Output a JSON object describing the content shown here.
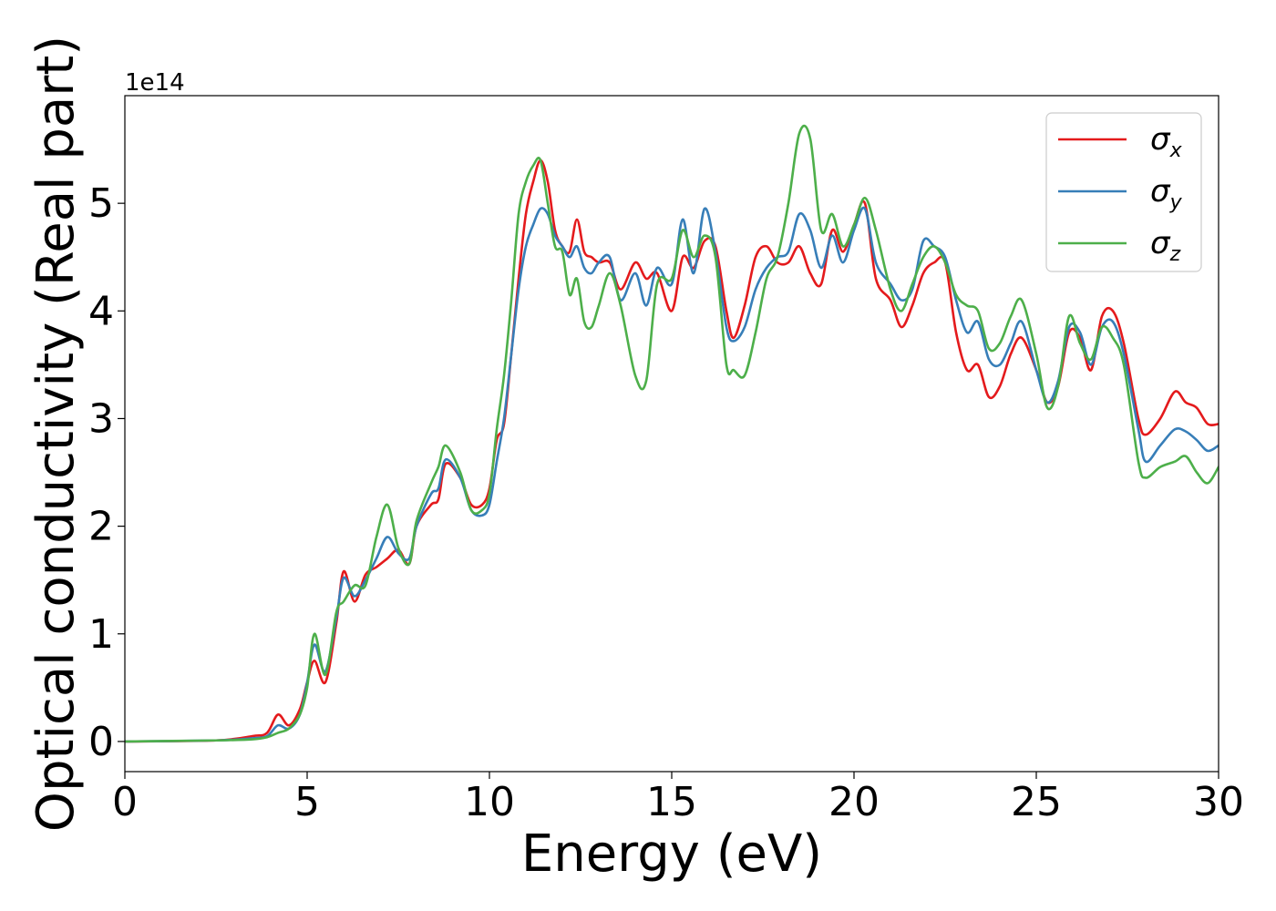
{
  "chart_data": {
    "type": "line",
    "xlabel": "Energy (eV)",
    "ylabel": "Optical conductivity (Real part)",
    "y_offset_label": "1e14",
    "xlim": [
      0,
      30
    ],
    "ylim": [
      -0.28,
      6.0
    ],
    "xticks": [
      0,
      5,
      10,
      15,
      20,
      25,
      30
    ],
    "yticks": [
      0,
      1,
      2,
      3,
      4,
      5
    ],
    "grid": false,
    "legend_position": "top-right",
    "colors": {
      "sigma_x": "#e41a1c",
      "sigma_y": "#377eb8",
      "sigma_z": "#4daf4a"
    },
    "legend": [
      {
        "key": "sigma_x",
        "symbol": "σ",
        "subscript": "x"
      },
      {
        "key": "sigma_y",
        "symbol": "σ",
        "subscript": "y"
      },
      {
        "key": "sigma_z",
        "symbol": "σ",
        "subscript": "z"
      }
    ],
    "series": [
      {
        "key": "sigma_x",
        "name": "σx",
        "points": [
          [
            0,
            0
          ],
          [
            2.5,
            0.01
          ],
          [
            3.5,
            0.05
          ],
          [
            3.9,
            0.08
          ],
          [
            4.2,
            0.25
          ],
          [
            4.5,
            0.15
          ],
          [
            4.8,
            0.3
          ],
          [
            5.0,
            0.55
          ],
          [
            5.2,
            0.75
          ],
          [
            5.5,
            0.55
          ],
          [
            5.8,
            1.1
          ],
          [
            6.0,
            1.58
          ],
          [
            6.3,
            1.3
          ],
          [
            6.6,
            1.55
          ],
          [
            6.9,
            1.62
          ],
          [
            7.2,
            1.7
          ],
          [
            7.5,
            1.78
          ],
          [
            7.8,
            1.65
          ],
          [
            8.0,
            2.0
          ],
          [
            8.4,
            2.2
          ],
          [
            8.6,
            2.25
          ],
          [
            8.8,
            2.58
          ],
          [
            9.2,
            2.45
          ],
          [
            9.5,
            2.2
          ],
          [
            9.8,
            2.2
          ],
          [
            10.0,
            2.35
          ],
          [
            10.2,
            2.8
          ],
          [
            10.4,
            2.95
          ],
          [
            10.6,
            3.6
          ],
          [
            10.8,
            4.3
          ],
          [
            11.0,
            4.9
          ],
          [
            11.2,
            5.2
          ],
          [
            11.4,
            5.4
          ],
          [
            11.6,
            5.2
          ],
          [
            11.8,
            4.75
          ],
          [
            12.0,
            4.6
          ],
          [
            12.2,
            4.55
          ],
          [
            12.4,
            4.85
          ],
          [
            12.6,
            4.55
          ],
          [
            12.8,
            4.5
          ],
          [
            13.0,
            4.45
          ],
          [
            13.3,
            4.45
          ],
          [
            13.6,
            4.2
          ],
          [
            14.0,
            4.45
          ],
          [
            14.3,
            4.3
          ],
          [
            14.6,
            4.35
          ],
          [
            15.0,
            4.0
          ],
          [
            15.3,
            4.5
          ],
          [
            15.6,
            4.4
          ],
          [
            15.9,
            4.65
          ],
          [
            16.2,
            4.6
          ],
          [
            16.5,
            4.0
          ],
          [
            16.7,
            3.75
          ],
          [
            17.0,
            4.05
          ],
          [
            17.3,
            4.5
          ],
          [
            17.6,
            4.6
          ],
          [
            17.9,
            4.45
          ],
          [
            18.2,
            4.45
          ],
          [
            18.5,
            4.6
          ],
          [
            18.8,
            4.35
          ],
          [
            19.1,
            4.25
          ],
          [
            19.4,
            4.75
          ],
          [
            19.7,
            4.55
          ],
          [
            20.0,
            4.8
          ],
          [
            20.3,
            5.0
          ],
          [
            20.6,
            4.3
          ],
          [
            21.0,
            4.1
          ],
          [
            21.3,
            3.85
          ],
          [
            21.6,
            4.05
          ],
          [
            21.9,
            4.35
          ],
          [
            22.2,
            4.45
          ],
          [
            22.5,
            4.45
          ],
          [
            22.8,
            3.8
          ],
          [
            23.1,
            3.45
          ],
          [
            23.4,
            3.5
          ],
          [
            23.7,
            3.2
          ],
          [
            24.0,
            3.3
          ],
          [
            24.3,
            3.6
          ],
          [
            24.6,
            3.75
          ],
          [
            25.0,
            3.45
          ],
          [
            25.3,
            3.15
          ],
          [
            25.6,
            3.3
          ],
          [
            25.9,
            3.8
          ],
          [
            26.2,
            3.75
          ],
          [
            26.5,
            3.45
          ],
          [
            26.8,
            3.95
          ],
          [
            27.1,
            4.0
          ],
          [
            27.4,
            3.7
          ],
          [
            27.8,
            3.0
          ],
          [
            28.0,
            2.85
          ],
          [
            28.4,
            3.0
          ],
          [
            28.8,
            3.25
          ],
          [
            29.1,
            3.15
          ],
          [
            29.4,
            3.1
          ],
          [
            29.7,
            2.95
          ],
          [
            30.0,
            2.95
          ]
        ]
      },
      {
        "key": "sigma_y",
        "name": "σy",
        "points": [
          [
            0,
            0
          ],
          [
            2.5,
            0.01
          ],
          [
            3.5,
            0.03
          ],
          [
            3.9,
            0.05
          ],
          [
            4.2,
            0.15
          ],
          [
            4.5,
            0.12
          ],
          [
            4.8,
            0.25
          ],
          [
            5.0,
            0.55
          ],
          [
            5.2,
            0.9
          ],
          [
            5.5,
            0.65
          ],
          [
            5.8,
            1.15
          ],
          [
            6.0,
            1.52
          ],
          [
            6.3,
            1.35
          ],
          [
            6.6,
            1.5
          ],
          [
            6.9,
            1.7
          ],
          [
            7.2,
            1.9
          ],
          [
            7.5,
            1.75
          ],
          [
            7.8,
            1.7
          ],
          [
            8.0,
            2.0
          ],
          [
            8.4,
            2.3
          ],
          [
            8.6,
            2.35
          ],
          [
            8.8,
            2.62
          ],
          [
            9.2,
            2.45
          ],
          [
            9.5,
            2.15
          ],
          [
            9.8,
            2.1
          ],
          [
            10.0,
            2.2
          ],
          [
            10.2,
            2.6
          ],
          [
            10.4,
            3.0
          ],
          [
            10.6,
            3.6
          ],
          [
            10.8,
            4.2
          ],
          [
            11.0,
            4.6
          ],
          [
            11.2,
            4.8
          ],
          [
            11.4,
            4.95
          ],
          [
            11.6,
            4.9
          ],
          [
            11.8,
            4.7
          ],
          [
            12.0,
            4.6
          ],
          [
            12.2,
            4.5
          ],
          [
            12.4,
            4.6
          ],
          [
            12.6,
            4.4
          ],
          [
            12.8,
            4.35
          ],
          [
            13.0,
            4.45
          ],
          [
            13.3,
            4.5
          ],
          [
            13.6,
            4.1
          ],
          [
            14.0,
            4.35
          ],
          [
            14.3,
            4.05
          ],
          [
            14.6,
            4.4
          ],
          [
            15.0,
            4.25
          ],
          [
            15.3,
            4.85
          ],
          [
            15.6,
            4.35
          ],
          [
            15.9,
            4.95
          ],
          [
            16.2,
            4.55
          ],
          [
            16.5,
            3.85
          ],
          [
            16.7,
            3.72
          ],
          [
            17.0,
            3.85
          ],
          [
            17.3,
            4.2
          ],
          [
            17.6,
            4.4
          ],
          [
            17.9,
            4.5
          ],
          [
            18.2,
            4.55
          ],
          [
            18.5,
            4.9
          ],
          [
            18.8,
            4.75
          ],
          [
            19.1,
            4.4
          ],
          [
            19.4,
            4.7
          ],
          [
            19.7,
            4.45
          ],
          [
            20.0,
            4.75
          ],
          [
            20.3,
            4.95
          ],
          [
            20.6,
            4.45
          ],
          [
            21.0,
            4.25
          ],
          [
            21.3,
            4.1
          ],
          [
            21.6,
            4.2
          ],
          [
            21.9,
            4.65
          ],
          [
            22.2,
            4.6
          ],
          [
            22.5,
            4.5
          ],
          [
            22.8,
            4.1
          ],
          [
            23.1,
            3.8
          ],
          [
            23.4,
            3.9
          ],
          [
            23.7,
            3.55
          ],
          [
            24.0,
            3.5
          ],
          [
            24.3,
            3.7
          ],
          [
            24.6,
            3.9
          ],
          [
            25.0,
            3.45
          ],
          [
            25.3,
            3.15
          ],
          [
            25.6,
            3.35
          ],
          [
            25.9,
            3.85
          ],
          [
            26.2,
            3.8
          ],
          [
            26.5,
            3.5
          ],
          [
            26.8,
            3.85
          ],
          [
            27.1,
            3.9
          ],
          [
            27.4,
            3.6
          ],
          [
            27.8,
            2.9
          ],
          [
            28.0,
            2.6
          ],
          [
            28.4,
            2.75
          ],
          [
            28.8,
            2.9
          ],
          [
            29.1,
            2.88
          ],
          [
            29.4,
            2.8
          ],
          [
            29.7,
            2.7
          ],
          [
            30.0,
            2.75
          ]
        ]
      },
      {
        "key": "sigma_z",
        "name": "σz",
        "points": [
          [
            0,
            0
          ],
          [
            2.5,
            0.01
          ],
          [
            3.5,
            0.02
          ],
          [
            3.9,
            0.04
          ],
          [
            4.2,
            0.08
          ],
          [
            4.5,
            0.12
          ],
          [
            4.8,
            0.25
          ],
          [
            5.0,
            0.5
          ],
          [
            5.2,
            1.0
          ],
          [
            5.5,
            0.62
          ],
          [
            5.8,
            1.2
          ],
          [
            6.0,
            1.3
          ],
          [
            6.3,
            1.45
          ],
          [
            6.6,
            1.45
          ],
          [
            6.9,
            1.9
          ],
          [
            7.2,
            2.2
          ],
          [
            7.5,
            1.8
          ],
          [
            7.8,
            1.65
          ],
          [
            8.0,
            2.05
          ],
          [
            8.4,
            2.4
          ],
          [
            8.6,
            2.55
          ],
          [
            8.8,
            2.75
          ],
          [
            9.2,
            2.5
          ],
          [
            9.5,
            2.15
          ],
          [
            9.8,
            2.15
          ],
          [
            10.0,
            2.3
          ],
          [
            10.2,
            2.9
          ],
          [
            10.4,
            3.4
          ],
          [
            10.6,
            4.1
          ],
          [
            10.8,
            4.9
          ],
          [
            11.0,
            5.2
          ],
          [
            11.2,
            5.35
          ],
          [
            11.4,
            5.4
          ],
          [
            11.6,
            5.0
          ],
          [
            11.8,
            4.6
          ],
          [
            12.0,
            4.55
          ],
          [
            12.2,
            4.15
          ],
          [
            12.4,
            4.3
          ],
          [
            12.6,
            3.9
          ],
          [
            12.8,
            3.85
          ],
          [
            13.0,
            4.05
          ],
          [
            13.3,
            4.35
          ],
          [
            13.6,
            4.05
          ],
          [
            14.0,
            3.4
          ],
          [
            14.3,
            3.35
          ],
          [
            14.6,
            4.25
          ],
          [
            15.0,
            4.3
          ],
          [
            15.3,
            4.75
          ],
          [
            15.6,
            4.5
          ],
          [
            15.9,
            4.7
          ],
          [
            16.2,
            4.5
          ],
          [
            16.5,
            3.5
          ],
          [
            16.7,
            3.45
          ],
          [
            17.0,
            3.4
          ],
          [
            17.3,
            3.8
          ],
          [
            17.6,
            4.3
          ],
          [
            17.9,
            4.5
          ],
          [
            18.2,
            5.0
          ],
          [
            18.5,
            5.65
          ],
          [
            18.8,
            5.6
          ],
          [
            19.1,
            4.75
          ],
          [
            19.4,
            4.9
          ],
          [
            19.7,
            4.6
          ],
          [
            20.0,
            4.8
          ],
          [
            20.3,
            5.05
          ],
          [
            20.6,
            4.75
          ],
          [
            21.0,
            4.2
          ],
          [
            21.3,
            4.0
          ],
          [
            21.6,
            4.25
          ],
          [
            21.9,
            4.5
          ],
          [
            22.2,
            4.6
          ],
          [
            22.5,
            4.45
          ],
          [
            22.8,
            4.15
          ],
          [
            23.1,
            4.05
          ],
          [
            23.4,
            4.0
          ],
          [
            23.7,
            3.65
          ],
          [
            24.0,
            3.7
          ],
          [
            24.3,
            3.95
          ],
          [
            24.6,
            4.1
          ],
          [
            25.0,
            3.6
          ],
          [
            25.3,
            3.1
          ],
          [
            25.6,
            3.3
          ],
          [
            25.9,
            3.95
          ],
          [
            26.2,
            3.7
          ],
          [
            26.5,
            3.55
          ],
          [
            26.8,
            3.85
          ],
          [
            27.1,
            3.75
          ],
          [
            27.4,
            3.5
          ],
          [
            27.8,
            2.6
          ],
          [
            28.0,
            2.45
          ],
          [
            28.4,
            2.55
          ],
          [
            28.8,
            2.6
          ],
          [
            29.1,
            2.65
          ],
          [
            29.4,
            2.5
          ],
          [
            29.7,
            2.4
          ],
          [
            30.0,
            2.55
          ]
        ]
      }
    ]
  }
}
